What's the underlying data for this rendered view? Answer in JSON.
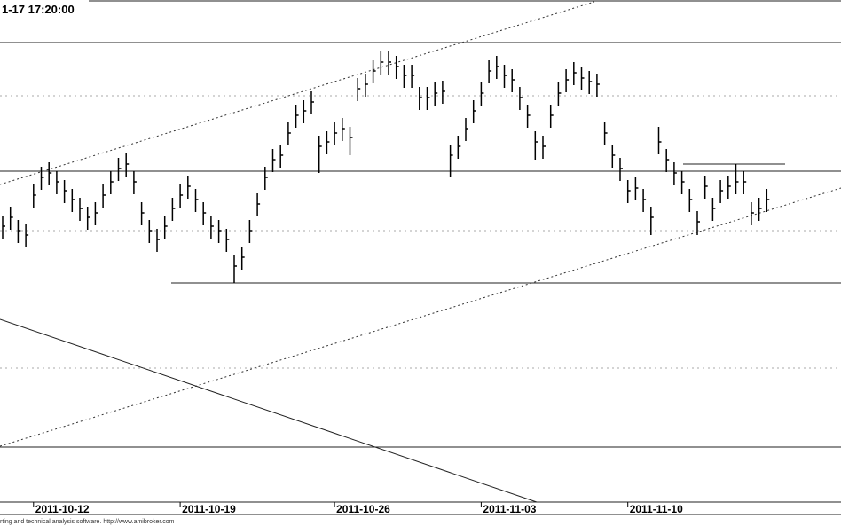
{
  "chart_data": {
    "type": "hlc",
    "title": "1-17 17:20:00",
    "footer": "rting and technical analysis software. http://www.amibroker.com",
    "color": "#000000",
    "categories": [
      null,
      null,
      null,
      null,
      "2011-10-12",
      null,
      null,
      null,
      null,
      null,
      null,
      null,
      null,
      null,
      null,
      null,
      null,
      null,
      null,
      null,
      null,
      null,
      null,
      "2011-10-19",
      null,
      null,
      null,
      null,
      null,
      null,
      null,
      null,
      null,
      null,
      null,
      null,
      null,
      null,
      null,
      null,
      null,
      null,
      null,
      "2011-10-26",
      null,
      null,
      null,
      null,
      null,
      null,
      null,
      null,
      null,
      null,
      null,
      null,
      null,
      null,
      null,
      null,
      null,
      null,
      "2011-11-03",
      null,
      null,
      null,
      null,
      null,
      null,
      null,
      null,
      null,
      null,
      null,
      null,
      null,
      null,
      null,
      null,
      null,
      null,
      "2011-11-10",
      null,
      null,
      null,
      null,
      null,
      null,
      null,
      null,
      null,
      null,
      null,
      null,
      null,
      null,
      null,
      null,
      null,
      null
    ],
    "high": [
      327,
      337,
      322,
      317,
      362,
      382,
      387,
      377,
      367,
      357,
      347,
      337,
      342,
      362,
      377,
      392,
      397,
      377,
      342,
      322,
      312,
      327,
      347,
      362,
      372,
      357,
      342,
      327,
      322,
      312,
      282,
      292,
      322,
      352,
      382,
      402,
      407,
      432,
      452,
      457,
      467,
      417,
      422,
      432,
      437,
      427,
      482,
      487,
      502,
      512,
      512,
      507,
      497,
      497,
      472,
      472,
      477,
      479,
      407,
      417,
      437,
      457,
      477,
      502,
      507,
      497,
      492,
      472,
      452,
      422,
      417,
      452,
      477,
      492,
      500,
      494,
      490,
      487,
      432,
      407,
      392,
      367,
      370,
      357,
      337,
      427,
      402,
      387,
      377,
      357,
      332,
      372,
      347,
      367,
      372,
      385,
      377,
      342,
      347,
      357
    ],
    "low": [
      301,
      311,
      296,
      291,
      336,
      356,
      361,
      351,
      341,
      331,
      321,
      311,
      316,
      336,
      351,
      366,
      371,
      351,
      316,
      296,
      286,
      301,
      321,
      336,
      346,
      331,
      316,
      301,
      296,
      286,
      251,
      266,
      296,
      326,
      356,
      376,
      381,
      406,
      426,
      431,
      441,
      375,
      396,
      406,
      411,
      395,
      456,
      461,
      476,
      486,
      486,
      481,
      471,
      471,
      446,
      446,
      451,
      453,
      370,
      391,
      411,
      431,
      451,
      476,
      481,
      471,
      466,
      446,
      426,
      390,
      391,
      426,
      451,
      466,
      474,
      468,
      464,
      461,
      406,
      381,
      366,
      341,
      344,
      331,
      305,
      396,
      376,
      361,
      351,
      331,
      305,
      346,
      321,
      341,
      346,
      351,
      351,
      316,
      321,
      331
    ],
    "close": [
      315,
      325,
      310,
      305,
      350,
      370,
      375,
      365,
      355,
      345,
      335,
      325,
      330,
      350,
      365,
      380,
      385,
      365,
      330,
      310,
      300,
      315,
      335,
      350,
      360,
      345,
      330,
      315,
      310,
      300,
      270,
      280,
      310,
      340,
      370,
      390,
      395,
      420,
      440,
      445,
      455,
      405,
      410,
      420,
      425,
      415,
      470,
      475,
      490,
      500,
      500,
      495,
      485,
      485,
      460,
      460,
      465,
      467,
      395,
      405,
      425,
      445,
      465,
      490,
      495,
      485,
      480,
      460,
      440,
      410,
      405,
      440,
      465,
      480,
      488,
      482,
      478,
      475,
      420,
      395,
      380,
      355,
      358,
      345,
      325,
      410,
      390,
      375,
      365,
      345,
      320,
      360,
      335,
      355,
      360,
      365,
      365,
      330,
      335,
      345
    ],
    "ylim": [
      0,
      565
    ]
  }
}
